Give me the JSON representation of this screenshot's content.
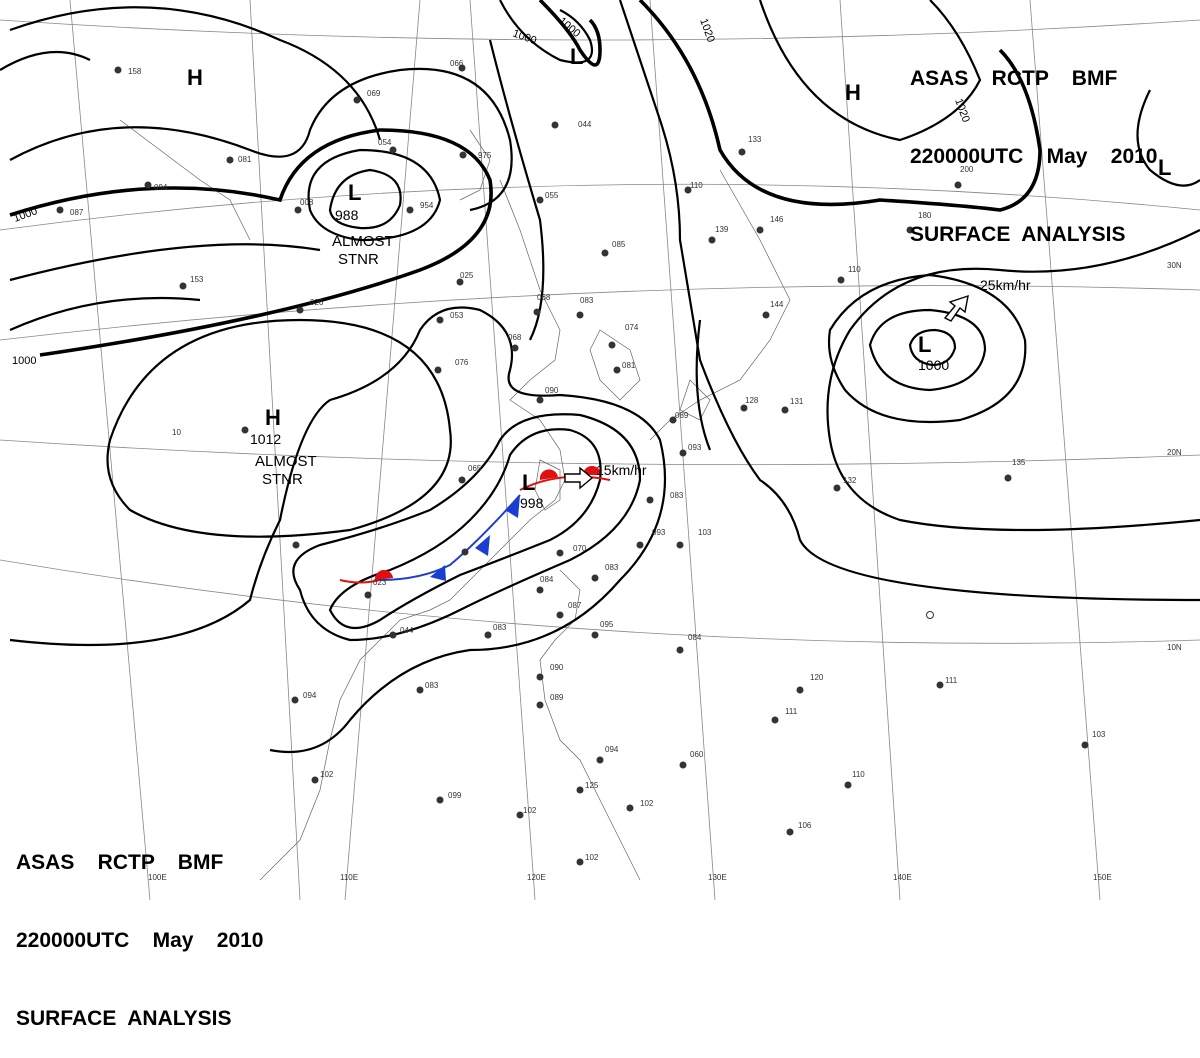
{
  "header_top": {
    "line1": "ASAS    RCTP    BMF",
    "line2": "220000UTC    May    2010",
    "line3": "SURFACE  ANALYSIS"
  },
  "header_bottom": {
    "line1": "ASAS    RCTP    BMF",
    "line2": "220000UTC    May    2010",
    "line3": "SURFACE  ANALYSIS"
  },
  "longitude_labels": [
    "100E",
    "110E",
    "120E",
    "130E",
    "140E",
    "150E"
  ],
  "latitude_labels": [
    "30N",
    "20N",
    "10N"
  ],
  "isobar_labels": [
    "1000",
    "1000",
    "1000",
    "1000",
    "1020",
    "1020"
  ],
  "pressure_systems": [
    {
      "type": "H",
      "color": "#1a3fd0"
    },
    {
      "type": "H",
      "color": "#1a3fd0",
      "value": "1012",
      "note": "ALMOST\nSTNR"
    },
    {
      "type": "H",
      "color": "#1a3fd0"
    },
    {
      "type": "L",
      "color": "#e01010",
      "value": "988",
      "note": "ALMOST\nSTNR"
    },
    {
      "type": "L",
      "color": "#e01010"
    },
    {
      "type": "L",
      "color": "#e01010",
      "value": "998"
    },
    {
      "type": "L",
      "color": "#e01010",
      "value": "1000"
    },
    {
      "type": "L",
      "color": "#e01010"
    }
  ],
  "motion_labels": [
    "15km/hr",
    "25km/hr"
  ],
  "colors": {
    "low": "#e01010",
    "high": "#1a3fd0",
    "warm_front": "#e01010",
    "cold_front": "#1a3fd0"
  }
}
